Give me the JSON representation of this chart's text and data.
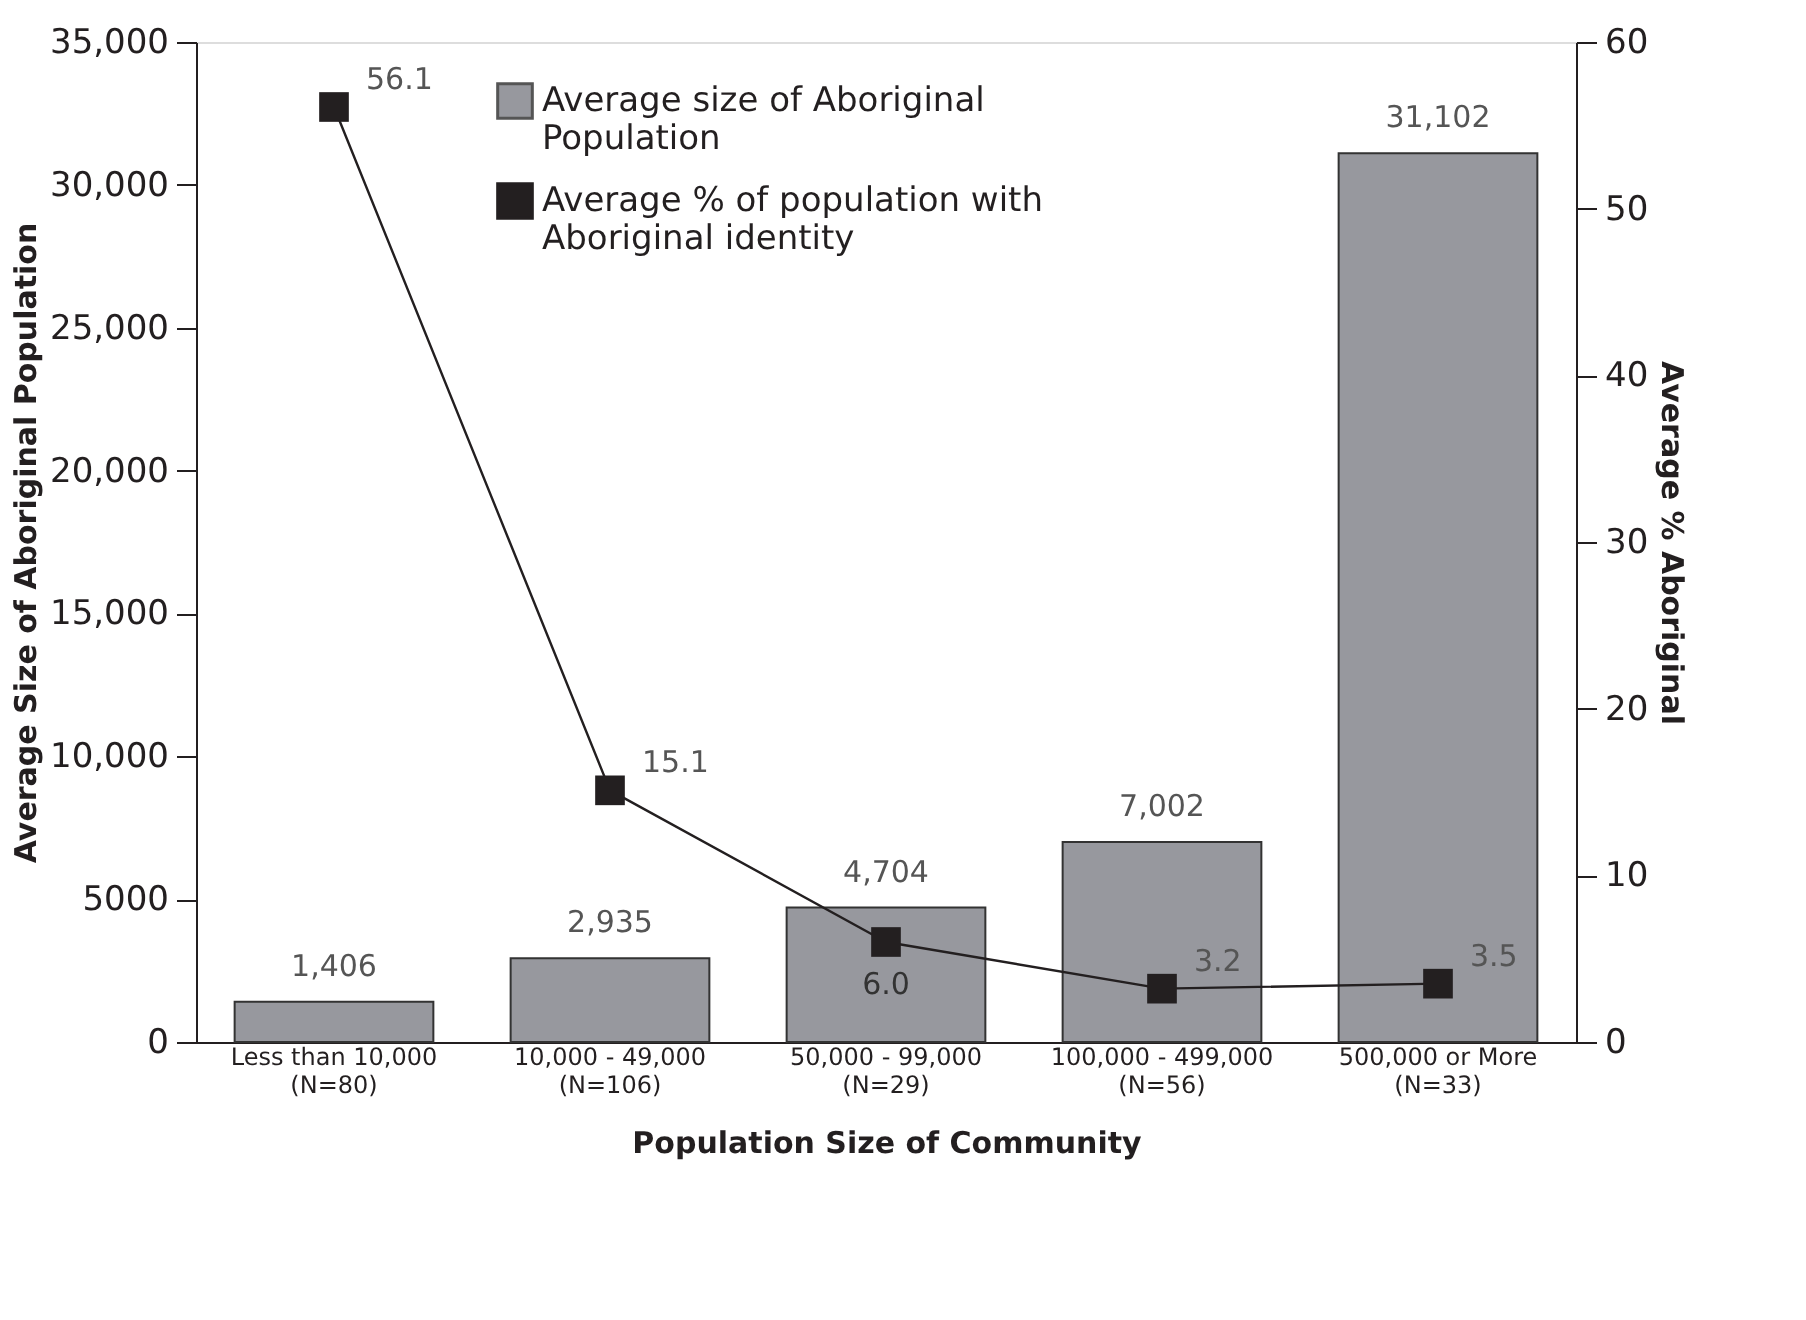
{
  "chart_data": {
    "type": "bar",
    "xlabel": "Population Size of Community",
    "ylabel": "Average Size of Aboriginal Population",
    "y2label": "Average % Aboriginal",
    "categories": [
      "Less than 10,000\n(N=80)",
      "10,000 - 49,000\n(N=106)",
      "50,000 - 99,000\n(N=29)",
      "100,000 - 499,000\n(N=56)",
      "500,000 or More\n(N=33)"
    ],
    "series": [
      {
        "name": "Average size of Aboriginal Population",
        "color": "#97989e",
        "values": [
          1406,
          2935,
          4704,
          7002,
          31102
        ],
        "value_labels": [
          "1,406",
          "2,935",
          "4,704",
          "7,002",
          "31,102"
        ]
      },
      {
        "name": "Average % of population with Aboriginal identity",
        "type": "line",
        "axis": "y2",
        "color": "#231f20",
        "marker": "square",
        "values": [
          56.1,
          15.1,
          6.0,
          3.2,
          3.5
        ],
        "value_labels": [
          "56.1",
          "15.1",
          "6.0",
          "3.2",
          "3.5"
        ]
      }
    ],
    "ylim": [
      0,
      35000
    ],
    "yticks": [
      0,
      5000,
      {
        "value": 10000,
        "label": "10,000"
      },
      {
        "value": 15000,
        "label": "15,000"
      },
      {
        "value": 20000,
        "label": "20,000"
      },
      {
        "value": 25000,
        "label": "25,000"
      },
      {
        "value": 30000,
        "label": "30,000"
      },
      {
        "value": 35000,
        "label": "35,000"
      }
    ],
    "y2lim": [
      0,
      60
    ],
    "y2ticks": [
      0,
      10,
      20,
      30,
      40,
      50,
      60
    ],
    "legend": "top",
    "grid": false
  }
}
